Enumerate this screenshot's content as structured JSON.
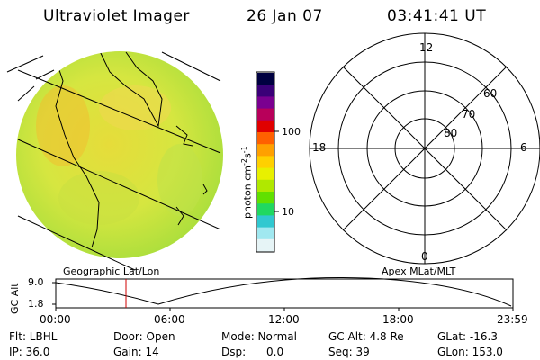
{
  "header": {
    "title": "Ultraviolet Imager",
    "date": "26 Jan 07",
    "time": "03:41:41 UT"
  },
  "colorbar": {
    "unit_label": "photon cm",
    "unit_sup1": "-2",
    "unit_mid": "s",
    "unit_sup2": "-1",
    "tick_100": "100",
    "tick_10": "10",
    "colors": [
      "#000040",
      "#3a0078",
      "#7a0090",
      "#b8005a",
      "#e00000",
      "#ff6000",
      "#ffa000",
      "#ffd000",
      "#e8f000",
      "#b0e800",
      "#60e000",
      "#20d860",
      "#30c8d0",
      "#a0e8f0",
      "#e6f4f6"
    ]
  },
  "panels": {
    "left_caption": "Geographic Lat/Lon",
    "right_caption": "Apex MLat/MLT"
  },
  "polar": {
    "mlt_labels": {
      "top": "12",
      "left": "18",
      "right": "6",
      "bottom": "0"
    },
    "lat_labels": [
      "60",
      "70",
      "80"
    ]
  },
  "altitude_plot": {
    "ylabel": "GC Alt",
    "y_ticks": [
      "9.0",
      "1.8"
    ],
    "x_ticks": [
      "00:00",
      "06:00",
      "12:00",
      "18:00",
      "23:59"
    ],
    "marker_time": "03:41"
  },
  "info": {
    "filter": "Flt: LBHL",
    "door": "Door: Open",
    "mode": "Mode: Normal",
    "gc_alt": "GC Alt: 4.8 Re",
    "glat": "GLat: -16.3",
    "ip": "IP: 36.0",
    "gain": "Gain: 14",
    "dsp": "Dsp:      0.0",
    "seq": "Seq: 39",
    "glon": "GLon: 153.0"
  }
}
